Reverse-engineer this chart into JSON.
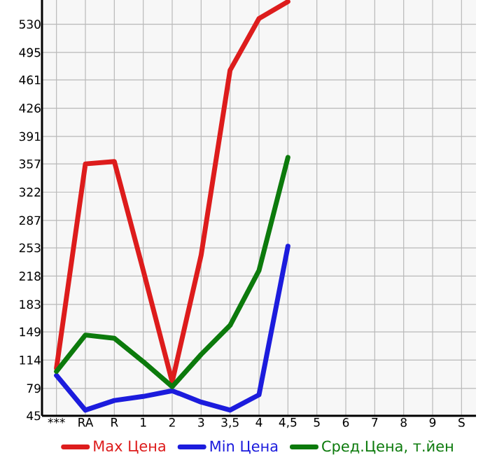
{
  "chart_data": {
    "type": "line",
    "categories": [
      "***",
      "RA",
      "R",
      "1",
      "2",
      "3",
      "3,5",
      "4",
      "4,5",
      "5",
      "6",
      "7",
      "8",
      "9",
      "S"
    ],
    "series": [
      {
        "name": "Max Цена",
        "color": "#dd1c1c",
        "values": [
          104,
          357,
          360,
          225,
          87,
          244,
          473,
          537,
          558,
          null,
          null,
          null,
          null,
          null,
          null
        ]
      },
      {
        "name": "Min Цена",
        "color": "#1c1cdd",
        "values": [
          95,
          52,
          64,
          69,
          76,
          62,
          52,
          71,
          255,
          null,
          null,
          null,
          null,
          null,
          null
        ]
      },
      {
        "name": "Сред.Цена, т.йен",
        "color": "#0c7a0c",
        "values": [
          100,
          145,
          141,
          112,
          81,
          121,
          157,
          225,
          365,
          null,
          null,
          null,
          null,
          null,
          null
        ]
      }
    ],
    "ylim": [
      45,
      560
    ],
    "yticks": [
      45,
      79,
      114,
      149,
      183,
      218,
      253,
      287,
      322,
      357,
      391,
      426,
      461,
      495,
      530
    ],
    "grid": true,
    "legend": "bottom",
    "marker": "none",
    "line_style": "solid"
  }
}
